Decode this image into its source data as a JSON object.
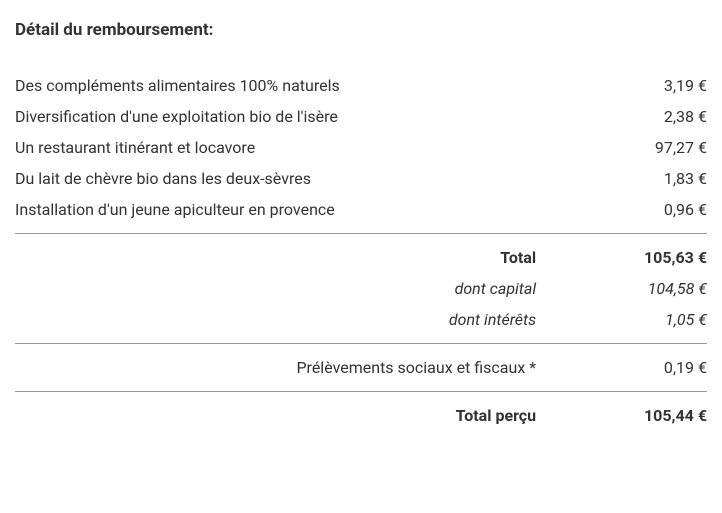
{
  "title": "Détail du remboursement:",
  "currency": "€",
  "items": [
    {
      "label": "Des compléments alimentaires 100% naturels",
      "amount": "3,19"
    },
    {
      "label": "Diversification d'une exploitation bio de l'isère",
      "amount": "2,38"
    },
    {
      "label": "Un restaurant itinérant et locavore",
      "amount": "97,27"
    },
    {
      "label": "Du lait de chèvre bio dans les deux-sèvres",
      "amount": "1,83"
    },
    {
      "label": "Installation d'un jeune apiculteur en provence",
      "amount": "0,96"
    }
  ],
  "total": {
    "label": "Total",
    "amount": "105,63"
  },
  "capital": {
    "label": "dont capital",
    "amount": "104,58"
  },
  "interest": {
    "label": "dont intérêts",
    "amount": "1,05"
  },
  "tax": {
    "label": "Prélèvements sociaux et fiscaux *",
    "amount": "0,19"
  },
  "net": {
    "label": "Total perçu",
    "amount": "105,44"
  }
}
